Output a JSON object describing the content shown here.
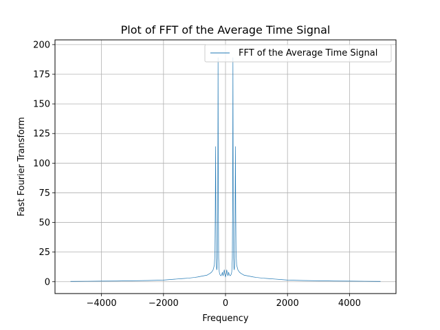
{
  "chart_data": {
    "type": "line",
    "title": "Plot of FFT of the Average Time Signal",
    "xlabel": "Frequency",
    "ylabel": "Fast Fourier Transform",
    "xlim": [
      -5500,
      5500
    ],
    "ylim": [
      -10,
      204
    ],
    "xticks": [
      -4000,
      -2000,
      0,
      2000,
      4000
    ],
    "xtick_labels": [
      "−4000",
      "−2000",
      "0",
      "2000",
      "4000"
    ],
    "yticks": [
      0,
      25,
      50,
      75,
      100,
      125,
      150,
      175,
      200
    ],
    "ytick_labels": [
      "0",
      "25",
      "50",
      "75",
      "100",
      "125",
      "150",
      "175",
      "200"
    ],
    "grid": true,
    "legend_position": "top-right",
    "series": [
      {
        "name": "FFT of the Average Time Signal",
        "color": "#1f77b4",
        "x": [
          -5000,
          -4500,
          -4000,
          -3500,
          -3000,
          -2500,
          -2000,
          -1800,
          -1600,
          -1400,
          -1200,
          -1000,
          -900,
          -800,
          -700,
          -600,
          -500,
          -450,
          -400,
          -360,
          -340,
          -330,
          -320,
          -310,
          -300,
          -290,
          -280,
          -270,
          -260,
          -250,
          -240,
          -230,
          -220,
          -210,
          -200,
          -180,
          -150,
          -120,
          -100,
          -80,
          -60,
          -40,
          -20,
          0,
          20,
          40,
          60,
          80,
          100,
          120,
          150,
          180,
          200,
          210,
          220,
          230,
          240,
          250,
          260,
          270,
          280,
          290,
          300,
          310,
          320,
          330,
          340,
          360,
          400,
          450,
          500,
          600,
          700,
          800,
          900,
          1000,
          1200,
          1400,
          1600,
          1800,
          2000,
          2500,
          3000,
          3500,
          4000,
          4500,
          5000
        ],
        "y": [
          0.3,
          0.4,
          0.5,
          0.6,
          0.8,
          1.0,
          1.4,
          1.8,
          2.2,
          2.6,
          3.0,
          3.6,
          4.0,
          4.5,
          5.0,
          5.5,
          7.0,
          8.0,
          10.0,
          14.0,
          25.0,
          60.0,
          114.0,
          60.0,
          20.0,
          12.0,
          10.0,
          12.0,
          20.0,
          60.0,
          189.0,
          70.0,
          20.0,
          12.0,
          8.0,
          6.0,
          5.0,
          6.0,
          8.0,
          5.0,
          7.0,
          10.0,
          6.0,
          4.0,
          6.0,
          10.0,
          7.0,
          5.0,
          8.0,
          6.0,
          5.0,
          6.0,
          8.0,
          12.0,
          20.0,
          70.0,
          189.0,
          60.0,
          20.0,
          12.0,
          10.0,
          12.0,
          20.0,
          60.0,
          114.0,
          60.0,
          25.0,
          14.0,
          10.0,
          8.0,
          7.0,
          5.5,
          5.0,
          4.5,
          4.0,
          3.6,
          3.0,
          2.6,
          2.2,
          1.8,
          1.4,
          1.0,
          0.8,
          0.6,
          0.5,
          0.4,
          0.3
        ]
      }
    ]
  }
}
